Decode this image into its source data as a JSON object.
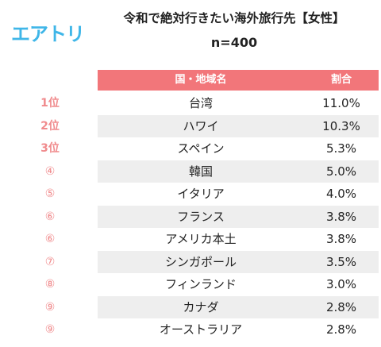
{
  "brand": {
    "logo": "エアトリ",
    "color": "#3fb6e8"
  },
  "title": "令和で絶対行きたい海外旅行先【女性】",
  "subtitle": "n=400",
  "chart_data": {
    "type": "table",
    "columns": [
      "国・地域名",
      "割合"
    ],
    "header_color": "#f2767a",
    "rank_color": "#f08a8c",
    "rows": [
      {
        "rank": "1位",
        "country": "台湾",
        "value": "11.0%"
      },
      {
        "rank": "2位",
        "country": "ハワイ",
        "value": "10.3%"
      },
      {
        "rank": "3位",
        "country": "スペイン",
        "value": "5.3%"
      },
      {
        "rank": "④",
        "country": "韓国",
        "value": "5.0%"
      },
      {
        "rank": "⑤",
        "country": "イタリア",
        "value": "4.0%"
      },
      {
        "rank": "⑥",
        "country": "フランス",
        "value": "3.8%"
      },
      {
        "rank": "⑥",
        "country": "アメリカ本土",
        "value": "3.8%"
      },
      {
        "rank": "⑦",
        "country": "シンガポール",
        "value": "3.5%"
      },
      {
        "rank": "⑧",
        "country": "フィンランド",
        "value": "3.0%"
      },
      {
        "rank": "⑨",
        "country": "カナダ",
        "value": "2.8%"
      },
      {
        "rank": "⑨",
        "country": "オーストラリア",
        "value": "2.8%"
      }
    ]
  }
}
